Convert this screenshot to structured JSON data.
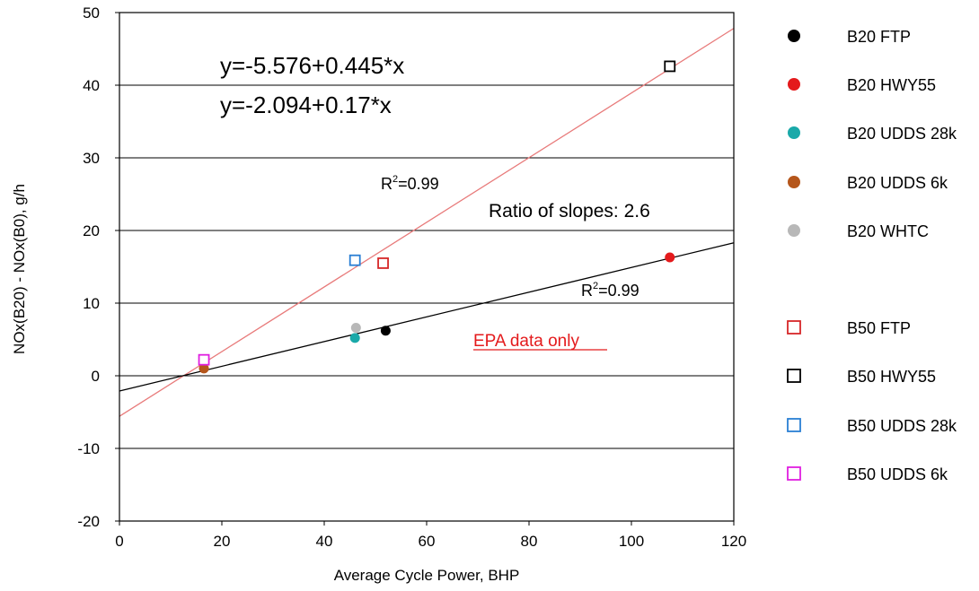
{
  "chart_data": {
    "type": "scatter",
    "title": "",
    "xlabel": "Average Cycle Power, BHP",
    "ylabel": "NOx(B20) - NOx(B0), g/h",
    "xlim": [
      0,
      120
    ],
    "ylim": [
      -20,
      50
    ],
    "x_ticks": [
      "0",
      "20",
      "40",
      "60",
      "80",
      "100",
      "120"
    ],
    "y_ticks": [
      "-20",
      "-10",
      "0",
      "10",
      "20",
      "30",
      "40",
      "50"
    ],
    "grid": "horizontal",
    "legend_placement": "right",
    "series": [
      {
        "name": "B20 FTP",
        "marker": "circle",
        "color": "#000000",
        "points": [
          [
            52,
            6.2
          ]
        ]
      },
      {
        "name": "B20 HWY55",
        "marker": "circle",
        "color": "#e41a1c",
        "points": [
          [
            107.5,
            16.3
          ]
        ]
      },
      {
        "name": "B20 UDDS 28k",
        "marker": "circle",
        "color": "#1aa9a9",
        "points": [
          [
            46,
            5.2
          ]
        ]
      },
      {
        "name": "B20 UDDS 6k",
        "marker": "circle",
        "color": "#b5561b",
        "points": [
          [
            16.5,
            1.0
          ]
        ]
      },
      {
        "name": "B20 WHTC",
        "marker": "circle",
        "color": "#b8b8b8",
        "points": [
          [
            46.2,
            6.6
          ]
        ]
      },
      {
        "name": "B50 FTP",
        "marker": "square",
        "color": "#d62728",
        "points": [
          [
            51.5,
            15.5
          ]
        ]
      },
      {
        "name": "B50 HWY55",
        "marker": "square",
        "color": "#000000",
        "points": [
          [
            107.5,
            42.6
          ]
        ]
      },
      {
        "name": "B50 UDDS 28k",
        "marker": "square",
        "color": "#2a7fd4",
        "points": [
          [
            46,
            15.9
          ]
        ]
      },
      {
        "name": "B50 UDDS 6k",
        "marker": "square",
        "color": "#e01fe0",
        "points": [
          [
            16.5,
            2.2
          ]
        ]
      }
    ],
    "fit_lines": [
      {
        "intercept": -5.576,
        "slope": 0.445,
        "color": "#e87a7a"
      },
      {
        "intercept": -2.094,
        "slope": 0.17,
        "color": "#000000"
      }
    ],
    "annotations": {
      "eq1": "y=-5.576+0.445*x",
      "eq2": "y=-2.094+0.17*x",
      "r2_b50": "0.99",
      "r2_b20": "0.99",
      "r2_prefix": "R",
      "r2_sup": "2",
      "ratio": "Ratio of slopes: 2.6",
      "epa": "EPA data only"
    }
  }
}
